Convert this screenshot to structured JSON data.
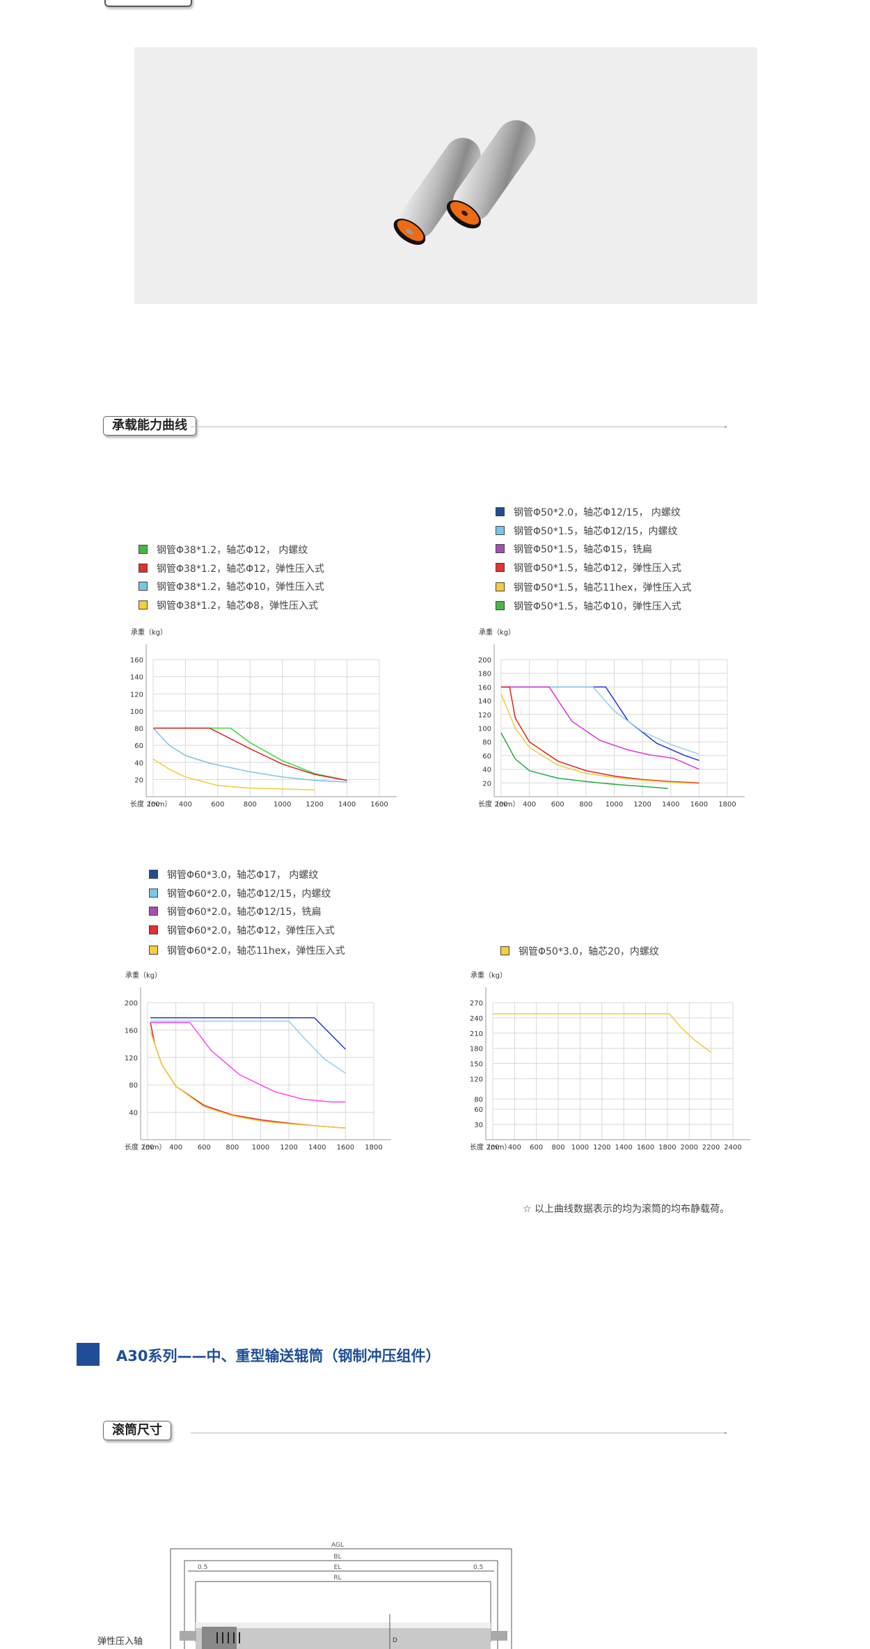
{
  "sections": {
    "load_curve_title": "承载能力曲线",
    "roller_size_title": "滚筒尺寸",
    "a30_title": "A30系列——中、重型输送辊筒（钢制冲压组件）",
    "note": "☆ 以上曲线数据表示的均为滚筒的均布静载荷。"
  },
  "legends": {
    "chart1": [
      {
        "color": "#47b649",
        "label": "钢管Φ38*1.2，轴芯Φ12， 内螺纹"
      },
      {
        "color": "#e62f2f",
        "label": "钢管Φ38*1.2，轴芯Φ12，弹性压入式"
      },
      {
        "color": "#74c6ea",
        "label": "钢管Φ38*1.2，轴芯Φ10，弹性压入式"
      },
      {
        "color": "#f6cd3a",
        "label": "钢管Φ38*1.2，轴芯Φ8，弹性压入式"
      }
    ],
    "chart2": [
      {
        "color": "#1f4e96",
        "label": "钢管Φ50*2.0，轴芯Φ12/15， 内螺纹"
      },
      {
        "color": "#74c6ea",
        "label": "钢管Φ50*1.5，轴芯Φ12/15，内螺纹"
      },
      {
        "color": "#a64fb5",
        "label": "钢管Φ50*1.5，轴芯Φ15，铣扁"
      },
      {
        "color": "#e62f2f",
        "label": "钢管Φ50*1.5，轴芯Φ12，弹性压入式"
      },
      {
        "color": "#f6cd3a",
        "label": "钢管Φ50*1.5，轴芯11hex，弹性压入式"
      },
      {
        "color": "#47b649",
        "label": "钢管Φ50*1.5，轴芯Φ10，弹性压入式"
      }
    ],
    "chart3": [
      {
        "color": "#1f4e96",
        "label": "钢管Φ60*3.0，轴芯Φ17， 内螺纹"
      },
      {
        "color": "#74c6ea",
        "label": "钢管Φ60*2.0，轴芯Φ12/15，内螺纹"
      },
      {
        "color": "#a64fb5",
        "label": "钢管Φ60*2.0，轴芯Φ12/15，铣扁"
      },
      {
        "color": "#e62f2f",
        "label": "钢管Φ60*2.0，轴芯Φ12，弹性压入式"
      },
      {
        "color": "#f6cd3a",
        "label": "钢管Φ60*2.0，轴芯11hex，弹性压入式"
      }
    ],
    "chart4": [
      {
        "color": "#f6cd3a",
        "label": "钢管Φ50*3.0，轴芯20，内螺纹"
      }
    ]
  },
  "chart_data": [
    {
      "type": "line",
      "ylabel": "承重（kg）",
      "xlabel": "长度（mm）",
      "xlim": [
        200,
        1600
      ],
      "ylim": [
        0,
        160
      ],
      "xticks": [
        200,
        400,
        600,
        800,
        1000,
        1200,
        1400,
        1600
      ],
      "yticks": [
        20,
        40,
        60,
        80,
        100,
        120,
        140,
        160
      ],
      "series": [
        {
          "color": "#33dd33",
          "points": [
            [
              200,
              80
            ],
            [
              680,
              80
            ],
            [
              800,
              63
            ],
            [
              1000,
              42
            ],
            [
              1200,
              27
            ],
            [
              1400,
              19
            ]
          ]
        },
        {
          "color": "#dd2222",
          "points": [
            [
              200,
              80
            ],
            [
              550,
              80
            ],
            [
              800,
              56
            ],
            [
              1000,
              38
            ],
            [
              1200,
              26
            ],
            [
              1400,
              19
            ]
          ]
        },
        {
          "color": "#7fbfe8",
          "points": [
            [
              200,
              80
            ],
            [
              300,
              60
            ],
            [
              400,
              48
            ],
            [
              550,
              39
            ],
            [
              800,
              29
            ],
            [
              1000,
              23
            ],
            [
              1200,
              19
            ],
            [
              1400,
              17
            ]
          ]
        },
        {
          "color": "#f2cc33",
          "points": [
            [
              200,
              44
            ],
            [
              300,
              32
            ],
            [
              400,
              23
            ],
            [
              600,
              13
            ],
            [
              800,
              10
            ],
            [
              1000,
              9
            ],
            [
              1200,
              8
            ]
          ]
        }
      ]
    },
    {
      "type": "line",
      "ylabel": "承重（kg）",
      "xlabel": "长度（mm）",
      "xlim": [
        200,
        1800
      ],
      "ylim": [
        0,
        200
      ],
      "xticks": [
        200,
        400,
        600,
        800,
        1000,
        1200,
        1400,
        1600,
        1800
      ],
      "yticks": [
        20,
        40,
        60,
        80,
        100,
        120,
        140,
        160,
        180,
        200
      ],
      "series": [
        {
          "color": "#2233dd",
          "points": [
            [
              200,
              160
            ],
            [
              940,
              160
            ],
            [
              1100,
              110
            ],
            [
              1300,
              78
            ],
            [
              1500,
              60
            ],
            [
              1600,
              53
            ]
          ]
        },
        {
          "color": "#8fd0f0",
          "points": [
            [
              200,
              160
            ],
            [
              850,
              160
            ],
            [
              1000,
              125
            ],
            [
              1200,
              95
            ],
            [
              1400,
              76
            ],
            [
              1600,
              62
            ]
          ]
        },
        {
          "color": "#dd33dd",
          "points": [
            [
              200,
              160
            ],
            [
              540,
              160
            ],
            [
              700,
              110
            ],
            [
              900,
              82
            ],
            [
              1100,
              68
            ],
            [
              1250,
              61
            ],
            [
              1420,
              56
            ],
            [
              1600,
              40
            ]
          ]
        },
        {
          "color": "#dd2222",
          "points": [
            [
              200,
              160
            ],
            [
              260,
              160
            ],
            [
              300,
              115
            ],
            [
              400,
              80
            ],
            [
              600,
              52
            ],
            [
              800,
              38
            ],
            [
              1000,
              30
            ],
            [
              1200,
              25
            ],
            [
              1400,
              22
            ],
            [
              1600,
              20
            ]
          ]
        },
        {
          "color": "#f2cc33",
          "points": [
            [
              200,
              150
            ],
            [
              300,
              100
            ],
            [
              400,
              72
            ],
            [
              600,
              46
            ],
            [
              800,
              34
            ],
            [
              1000,
              28
            ],
            [
              1200,
              24
            ],
            [
              1400,
              21
            ],
            [
              1600,
              19
            ]
          ]
        },
        {
          "color": "#22aa44",
          "points": [
            [
              200,
              93
            ],
            [
              300,
              55
            ],
            [
              400,
              38
            ],
            [
              600,
              27
            ],
            [
              800,
              22
            ],
            [
              1000,
              18
            ],
            [
              1200,
              15
            ],
            [
              1380,
              12
            ]
          ]
        }
      ]
    },
    {
      "type": "line",
      "ylabel": "承重（kg）",
      "xlabel": "长度（mm）",
      "xlim": [
        200,
        1800
      ],
      "ylim": [
        0,
        200
      ],
      "xticks": [
        200,
        400,
        600,
        800,
        1000,
        1200,
        1400,
        1600,
        1800
      ],
      "yticks": [
        40,
        80,
        120,
        160,
        200
      ],
      "series": [
        {
          "color": "#2233dd",
          "points": [
            [
              220,
              178
            ],
            [
              1380,
              178
            ],
            [
              1600,
              132
            ]
          ]
        },
        {
          "color": "#8fd0f0",
          "points": [
            [
              220,
              173
            ],
            [
              1200,
              173
            ],
            [
              1300,
              150
            ],
            [
              1450,
              118
            ],
            [
              1600,
              97
            ]
          ]
        },
        {
          "color": "#ff44ee",
          "points": [
            [
              220,
              171
            ],
            [
              500,
              171
            ],
            [
              650,
              130
            ],
            [
              850,
              95
            ],
            [
              1100,
              70
            ],
            [
              1300,
              59
            ],
            [
              1500,
              55
            ],
            [
              1600,
              55
            ]
          ]
        },
        {
          "color": "#dd2222",
          "points": [
            [
              220,
              171
            ],
            [
              250,
              140
            ],
            [
              300,
              110
            ],
            [
              400,
              78
            ],
            [
              600,
              50
            ],
            [
              800,
              36
            ],
            [
              1000,
              29
            ],
            [
              1200,
              24
            ],
            [
              1400,
              20
            ],
            [
              1600,
              17
            ]
          ]
        },
        {
          "color": "#f2cc33",
          "points": [
            [
              220,
              158
            ],
            [
              300,
              110
            ],
            [
              400,
              78
            ],
            [
              600,
              48
            ],
            [
              800,
              35
            ],
            [
              1000,
              27
            ],
            [
              1200,
              23
            ],
            [
              1400,
              20
            ],
            [
              1600,
              17
            ]
          ]
        }
      ]
    },
    {
      "type": "line",
      "ylabel": "承重（kg）",
      "xlabel": "长度（mm）",
      "xlim": [
        200,
        2400
      ],
      "ylim": [
        0,
        270
      ],
      "xticks": [
        200,
        400,
        600,
        800,
        1000,
        1200,
        1400,
        1600,
        1800,
        2000,
        2200,
        2400
      ],
      "yticks": [
        30,
        60,
        80,
        120,
        150,
        180,
        210,
        240,
        270
      ],
      "series": [
        {
          "color": "#f2cc33",
          "points": [
            [
              200,
              248
            ],
            [
              1820,
              248
            ],
            [
              1920,
              222
            ],
            [
              2050,
              196
            ],
            [
              2200,
              172
            ]
          ]
        }
      ]
    }
  ],
  "drawing": {
    "labels": {
      "agl": "AGL",
      "bl": "BL",
      "el": "EL",
      "rl": "RL",
      "left_gap": "0.5",
      "right_gap": "0.5",
      "d": "D",
      "side": "弹性压入轴"
    }
  }
}
